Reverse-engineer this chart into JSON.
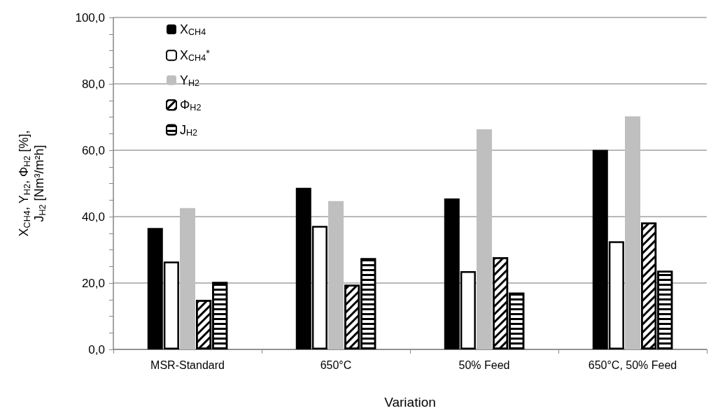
{
  "chart_data": {
    "type": "bar",
    "categories": [
      "MSR-Standard",
      "650°C",
      "50% Feed",
      "650°C, 50% Feed"
    ],
    "series": [
      {
        "name": "X$_{CH4}$",
        "color": "#000000",
        "values": [
          36.6,
          48.7,
          45.5,
          60.1
        ]
      },
      {
        "name": "X$_{CH4}$$^{*}$",
        "color": "#ffffff",
        "values": [
          26.5,
          37.2,
          23.6,
          32.6
        ]
      },
      {
        "name": "Y$_{H2}$",
        "color": "#bfbfbf",
        "values": [
          42.6,
          44.7,
          66.3,
          70.2
        ]
      },
      {
        "name": "Φ$_{H2}$",
        "color": "#000000",
        "values": [
          14.9,
          19.5,
          27.8,
          38.2
        ]
      },
      {
        "name": "J$_{H2}$",
        "color": "#000000",
        "values": [
          20.3,
          27.5,
          17.1,
          23.7
        ]
      }
    ],
    "xlabel": "Variation",
    "ylabel": "X$_{CH4}$, Y$_{H2}$, Φ$_{H2}$ [%],\nJ$_{H2}$ [Nm³/m²h]",
    "ylim": [
      0,
      100
    ],
    "yticks": [
      {
        "value": 0,
        "label": "0,0"
      },
      {
        "value": 20,
        "label": "20,0"
      },
      {
        "value": 40,
        "label": "40,0"
      },
      {
        "value": 60,
        "label": "60,0"
      },
      {
        "value": 80,
        "label": "80,0"
      },
      {
        "value": 100,
        "label": "100,0"
      },
      {
        "value": 5,
        "label": null
      },
      {
        "value": 10,
        "label": null
      },
      {
        "value": 15,
        "label": null
      },
      {
        "value": 25,
        "label": null
      },
      {
        "value": 30,
        "label": null
      },
      {
        "value": 35,
        "label": null
      },
      {
        "value": 45,
        "label": null
      },
      {
        "value": 50,
        "label": null
      },
      {
        "value": 55,
        "label": null
      },
      {
        "value": 65,
        "label": null
      },
      {
        "value": 70,
        "label": null
      },
      {
        "value": 75,
        "label": null
      },
      {
        "value": 85,
        "label": null
      },
      {
        "value": 90,
        "label": null
      },
      {
        "value": 95,
        "label": null
      }
    ],
    "grid": "y",
    "legend": "top left"
  }
}
